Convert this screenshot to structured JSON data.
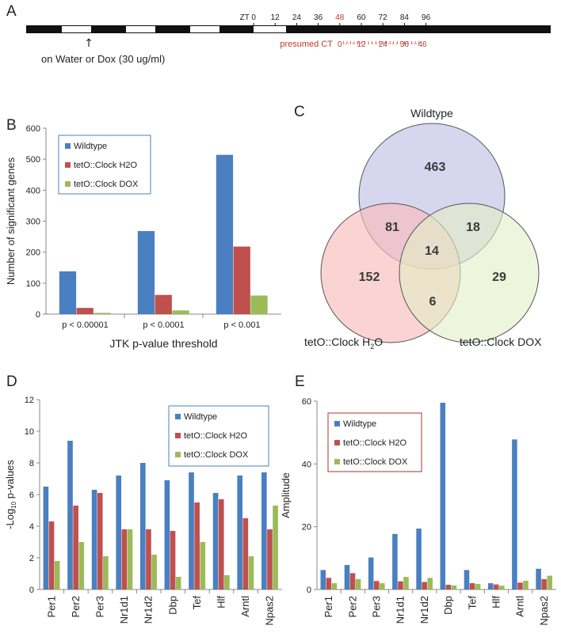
{
  "panels": {
    "a": "A",
    "b": "B",
    "c": "C",
    "d": "D",
    "e": "E"
  },
  "timeline": {
    "zt_labels": [
      "ZT 0",
      "12",
      "24",
      "36",
      "48",
      "60",
      "72",
      "84",
      "96"
    ],
    "zt_values": [
      0,
      12,
      24,
      36,
      48,
      60,
      72,
      84,
      96
    ],
    "presumed_ct_label": "presumed CT",
    "ct_labels": [
      "0",
      "12",
      "24",
      "36",
      "46"
    ],
    "ct_values": [
      0,
      12,
      24,
      36,
      46
    ],
    "treatment_label": "on Water or Dox (30 ug/ml)",
    "arrow": "↑"
  },
  "venn": {
    "set_labels": {
      "wildtype": "Wildtype",
      "h2o": "tetO::Clock H",
      "h2o_sub": "2",
      "h2o_tail": "O",
      "dox": "tetO::Clock DOX"
    },
    "counts": {
      "wt_only": "463",
      "h2o_only": "152",
      "dox_only": "29",
      "wt_h2o": "81",
      "wt_dox": "18",
      "h2o_dox": "6",
      "all": "14"
    },
    "colors": {
      "wildtype": "#c8c8ea",
      "h2o": "#f7bcbc",
      "dox": "#e3efc6"
    }
  },
  "chart_data": [
    {
      "type": "bar",
      "panel": "B",
      "categories": [
        "p < 0.00001",
        "p < 0.0001",
        "p < 0.001"
      ],
      "series": [
        {
          "name": "Wildtype",
          "values": [
            138,
            268,
            514
          ]
        },
        {
          "name": "tetO::Clock H2O",
          "values": [
            20,
            62,
            218
          ]
        },
        {
          "name": "tetO::Clock DOX",
          "values": [
            4,
            12,
            60
          ]
        }
      ],
      "xlabel": "JTK p-value threshold",
      "ylabel": "Number of significant genes",
      "ylim": [
        0,
        600
      ],
      "yticks": [
        "0",
        "100",
        "200",
        "300",
        "400",
        "500",
        "600"
      ],
      "colors": [
        "#4a7fc1",
        "#c0504d",
        "#9bbb59"
      ],
      "legend_position": "top-left",
      "grid": false
    },
    {
      "type": "bar",
      "panel": "D",
      "categories": [
        "Per1",
        "Per2",
        "Per3",
        "Nr1d1",
        "Nr1d2",
        "Dbp",
        "Tef",
        "Hlf",
        "Arntl",
        "Npas2"
      ],
      "series": [
        {
          "name": "Wildtype",
          "values": [
            6.5,
            9.4,
            6.3,
            7.2,
            8.0,
            6.9,
            7.4,
            6.1,
            7.2,
            7.4
          ]
        },
        {
          "name": "tetO::Clock H2O",
          "values": [
            4.3,
            5.3,
            6.1,
            3.8,
            3.8,
            3.7,
            5.5,
            5.7,
            4.5,
            3.8
          ]
        },
        {
          "name": "tetO::Clock DOX",
          "values": [
            1.8,
            3.0,
            2.1,
            3.8,
            2.2,
            0.8,
            3.0,
            0.9,
            2.1,
            5.3
          ]
        }
      ],
      "ylabel_pre": "-Log",
      "ylabel_sub": "10",
      "ylabel_post": " p-values",
      "ylim": [
        0,
        12
      ],
      "yticks": [
        "0",
        "2",
        "4",
        "6",
        "8",
        "10",
        "12"
      ],
      "colors": [
        "#4a7fc1",
        "#c0504d",
        "#9bbb59"
      ],
      "legend_position": "top-right",
      "grid": false
    },
    {
      "type": "bar",
      "panel": "E",
      "categories": [
        "Per1",
        "Per2",
        "Per3",
        "Nr1d1",
        "Nr1d2",
        "Dbp",
        "Tef",
        "Hlf",
        "Arntl",
        "Npas2"
      ],
      "series": [
        {
          "name": "Wildtype",
          "values": [
            6.2,
            7.8,
            10.2,
            17.7,
            19.4,
            59.5,
            6.2,
            2.0,
            47.8,
            6.6
          ]
        },
        {
          "name": "tetO::Clock H2O",
          "values": [
            3.7,
            5.2,
            2.7,
            2.6,
            2.4,
            1.5,
            2.0,
            1.6,
            2.2,
            3.3
          ]
        },
        {
          "name": "tetO::Clock DOX",
          "values": [
            2.0,
            3.3,
            2.0,
            4.0,
            3.7,
            1.3,
            1.8,
            1.2,
            2.8,
            4.4
          ]
        }
      ],
      "ylabel": "Amplitude",
      "ylim": [
        0,
        60
      ],
      "yticks": [
        "0",
        "20",
        "40",
        "60"
      ],
      "colors": [
        "#4a7fc1",
        "#c0504d",
        "#9bbb59"
      ],
      "legend_position": "top-left",
      "grid": false
    }
  ]
}
